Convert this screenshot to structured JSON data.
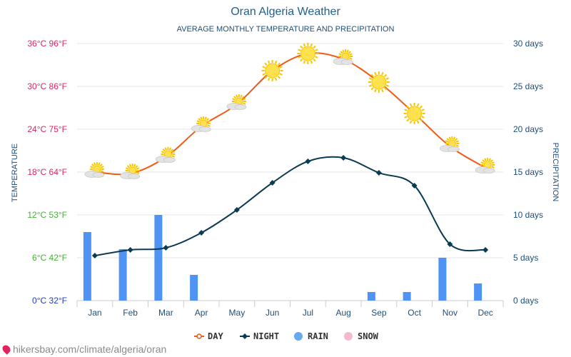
{
  "chart_data": {
    "type": "line",
    "title": "Oran Algeria Weather",
    "subtitle": "AVERAGE MONTHLY TEMPERATURE AND PRECIPITATION",
    "categories": [
      "Jan",
      "Feb",
      "Mar",
      "Apr",
      "May",
      "Jun",
      "Jul",
      "Aug",
      "Sep",
      "Oct",
      "Nov",
      "Dec"
    ],
    "left_axis": {
      "label": "TEMPERATURE",
      "range": [
        0,
        36
      ],
      "ticks": [
        {
          "value": 0,
          "label": "0°C 32°F",
          "color": "#1f3fbf"
        },
        {
          "value": 6,
          "label": "6°C 42°F",
          "color": "#44b035"
        },
        {
          "value": 12,
          "label": "12°C 53°F",
          "color": "#44b035"
        },
        {
          "value": 18,
          "label": "18°C 64°F",
          "color": "#e0245e"
        },
        {
          "value": 24,
          "label": "24°C 75°F",
          "color": "#e0245e"
        },
        {
          "value": 30,
          "label": "30°C 86°F",
          "color": "#e0245e"
        },
        {
          "value": 36,
          "label": "36°C 96°F",
          "color": "#e0245e"
        }
      ]
    },
    "right_axis": {
      "label": "PRECIPITATION",
      "range": [
        0,
        30
      ],
      "ticks": [
        {
          "value": 0,
          "label": "0 days"
        },
        {
          "value": 5,
          "label": "5 days"
        },
        {
          "value": 10,
          "label": "10 days"
        },
        {
          "value": 15,
          "label": "15 days"
        },
        {
          "value": 20,
          "label": "20 days"
        },
        {
          "value": 25,
          "label": "25 days"
        },
        {
          "value": 30,
          "label": "30 days"
        }
      ]
    },
    "series": [
      {
        "name": "DAY",
        "axis": "left",
        "color": "#f05a16",
        "values": [
          18,
          17.8,
          20.1,
          24.4,
          27.5,
          32.2,
          34.6,
          33.8,
          30.6,
          26.2,
          21.6,
          18.6
        ]
      },
      {
        "name": "NIGHT",
        "axis": "left",
        "color": "#0b3b52",
        "values": [
          6.3,
          7.1,
          7.4,
          9.5,
          12.7,
          16.5,
          19.5,
          20,
          17.9,
          16.1,
          7.9,
          7.1
        ]
      },
      {
        "name": "RAIN",
        "axis": "right",
        "color": "#4f94f5",
        "values": [
          8,
          6,
          10,
          3,
          0,
          0,
          0,
          0,
          1,
          1,
          5,
          2
        ]
      },
      {
        "name": "SNOW",
        "axis": "right",
        "color": "#f5b8cc",
        "values": [
          0,
          0,
          0,
          0,
          0,
          0,
          0,
          0,
          0,
          0,
          0,
          0
        ]
      }
    ],
    "day_icons": [
      "partly-cloudy",
      "partly-cloudy",
      "partly-cloudy",
      "partly-cloudy",
      "partly-cloudy",
      "sunny",
      "sunny",
      "partly-cloudy",
      "sunny",
      "sunny",
      "partly-cloudy",
      "partly-cloudy"
    ],
    "legend": {
      "placement": "bottom-center",
      "items": [
        {
          "label": "DAY",
          "color": "#f05a16",
          "marker": "line-dot"
        },
        {
          "label": "NIGHT",
          "color": "#0b3b52",
          "marker": "line-diamond"
        },
        {
          "label": "RAIN",
          "color": "#6aa9ef",
          "marker": "circle"
        },
        {
          "label": "SNOW",
          "color": "#f5b8cc",
          "marker": "circle"
        }
      ]
    }
  },
  "watermark": "hikersbay.com/climate/algeria/oran",
  "colors": {
    "title": "#1f5f8b",
    "subtitle": "#1f4e79",
    "right_axis": "#1f4e79",
    "axis_title": "#1f4e79",
    "grid": "#e6e6e6",
    "sun": "#ffe14d",
    "sun_ray": "#f7c400",
    "cloud": "#e3e3e3"
  }
}
